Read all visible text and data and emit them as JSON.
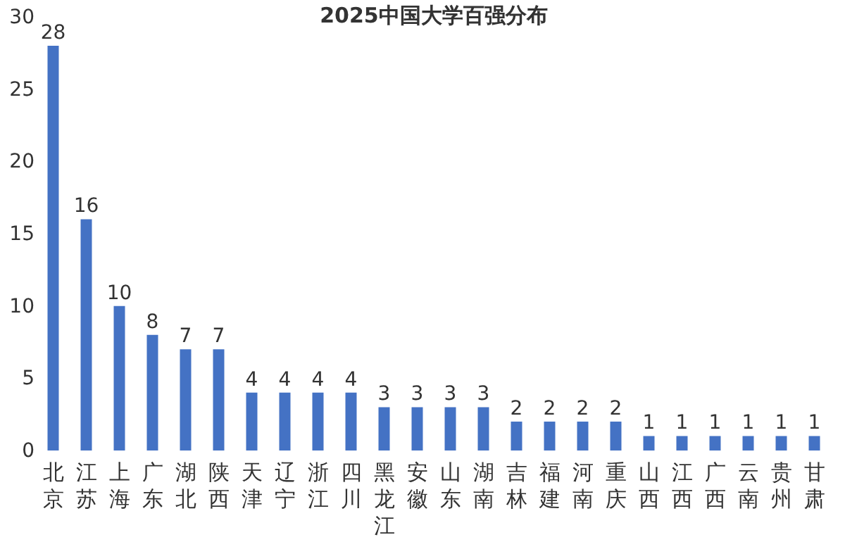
{
  "chart_data": {
    "type": "bar",
    "title": "2025中国大学百强分布",
    "categories": [
      "北京",
      "江苏",
      "上海",
      "广东",
      "湖北",
      "陕西",
      "天津",
      "辽宁",
      "浙江",
      "四川",
      "黑龙江",
      "安徽",
      "山东",
      "湖南",
      "吉林",
      "福建",
      "河南",
      "重庆",
      "山西",
      "江西",
      "广西",
      "云南",
      "贵州",
      "甘肃"
    ],
    "values": [
      28,
      16,
      10,
      8,
      7,
      7,
      4,
      4,
      4,
      4,
      3,
      3,
      3,
      3,
      2,
      2,
      2,
      2,
      1,
      1,
      1,
      1,
      1,
      1
    ],
    "color": "#4472c4",
    "ylim": [
      0,
      30
    ],
    "yticks": [
      0,
      5,
      10,
      15,
      20,
      25,
      30
    ],
    "grid": false,
    "data_labels": true
  }
}
